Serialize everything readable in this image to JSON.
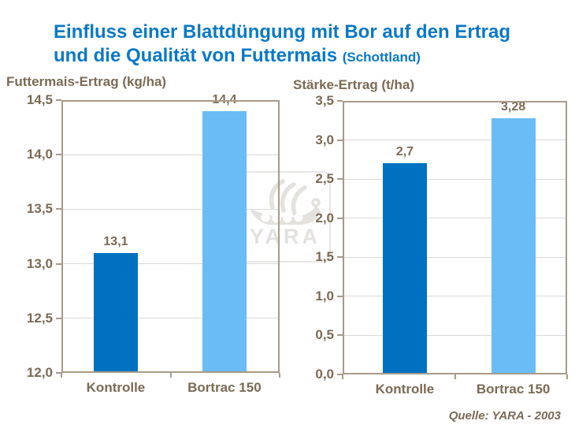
{
  "title": {
    "line1": "Einfluss einer Blattdüngung mit Bor auf den Ertrag",
    "line2": "und die Qualität von Futtermais",
    "suffix": "(Schottland)",
    "color": "#0a79c8"
  },
  "watermark": {
    "text": "YARA"
  },
  "source": "Quelle: YARA - 2003",
  "colors": {
    "title_blue": "#0a79c8",
    "bar_dark_blue": "#0071c1",
    "bar_light_blue": "#6abcf5",
    "axis_border_taupe": "#a79b88",
    "label_taupe": "#7b6a55",
    "gridline_gray": "#d9d9d9",
    "watermark_gray": "#e4e2df"
  },
  "chart_data": [
    {
      "type": "bar",
      "title": "Futtermais-Ertrag (kg/ha)",
      "categories": [
        "Kontrolle",
        "Bortrac 150"
      ],
      "values": [
        13.1,
        14.4
      ],
      "value_labels": [
        "13,1",
        "14,4"
      ],
      "ylim": [
        12.0,
        14.5
      ],
      "ytick_step": 0.5,
      "ytick_labels": [
        "12,0",
        "12,5",
        "13,0",
        "13,5",
        "14,0",
        "14,5"
      ],
      "bar_colors": [
        "#0071c1",
        "#6abcf5"
      ],
      "grid": true,
      "legend": false
    },
    {
      "type": "bar",
      "title": "Stärke-Ertrag (t/ha)",
      "categories": [
        "Kontrolle",
        "Bortrac 150"
      ],
      "values": [
        2.7,
        3.28
      ],
      "value_labels": [
        "2,7",
        "3,28"
      ],
      "ylim": [
        0.0,
        3.5
      ],
      "ytick_step": 0.5,
      "ytick_labels": [
        "0,0",
        "0,5",
        "1,0",
        "1,5",
        "2,0",
        "2,5",
        "3,0",
        "3,5"
      ],
      "bar_colors": [
        "#0071c1",
        "#6abcf5"
      ],
      "grid": true,
      "legend": false
    }
  ]
}
